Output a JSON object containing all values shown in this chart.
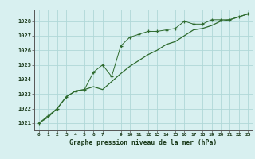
{
  "x_hourly": [
    0,
    1,
    2,
    3,
    4,
    5,
    6,
    7,
    8,
    9,
    10,
    11,
    12,
    13,
    14,
    15,
    16,
    17,
    18,
    19,
    20,
    21,
    22,
    23
  ],
  "y_hourly": [
    1021.0,
    1021.5,
    1022.0,
    1022.8,
    1023.2,
    1023.3,
    1024.5,
    1025.0,
    1024.2,
    1026.3,
    1026.9,
    1027.1,
    1027.3,
    1027.3,
    1027.4,
    1027.5,
    1028.0,
    1027.8,
    1027.8,
    1028.1,
    1028.1,
    1028.1,
    1028.3,
    1028.5
  ],
  "x_smooth": [
    0,
    1,
    2,
    3,
    4,
    5,
    6,
    7,
    9,
    10,
    11,
    12,
    13,
    14,
    15,
    16,
    17,
    18,
    19,
    20,
    21,
    22,
    23
  ],
  "y_smooth": [
    1021.0,
    1021.4,
    1022.0,
    1022.8,
    1023.2,
    1023.3,
    1023.5,
    1023.3,
    1024.4,
    1024.9,
    1025.3,
    1025.7,
    1026.0,
    1026.4,
    1026.6,
    1027.0,
    1027.4,
    1027.5,
    1027.7,
    1028.0,
    1028.1,
    1028.3,
    1028.5
  ],
  "line_color": "#2d6a2d",
  "marker_color": "#2d6a2d",
  "bg_color": "#d8f0f0",
  "grid_color": "#b0d8d8",
  "xlabel": "Graphe pression niveau de la mer (hPa)",
  "ylim": [
    1020.5,
    1028.8
  ],
  "xlim": [
    -0.5,
    23.5
  ],
  "yticks": [
    1021,
    1022,
    1023,
    1024,
    1025,
    1026,
    1027,
    1028
  ],
  "xticks": [
    0,
    1,
    2,
    3,
    4,
    5,
    6,
    7,
    9,
    10,
    11,
    12,
    13,
    14,
    15,
    16,
    17,
    18,
    19,
    20,
    21,
    22,
    23
  ],
  "xtick_labels": [
    "0",
    "1",
    "2",
    "3",
    "4",
    "5",
    "6",
    "7",
    "9",
    "10",
    "11",
    "12",
    "13",
    "14",
    "15",
    "16",
    "17",
    "18",
    "19",
    "20",
    "21",
    "22",
    "23"
  ]
}
